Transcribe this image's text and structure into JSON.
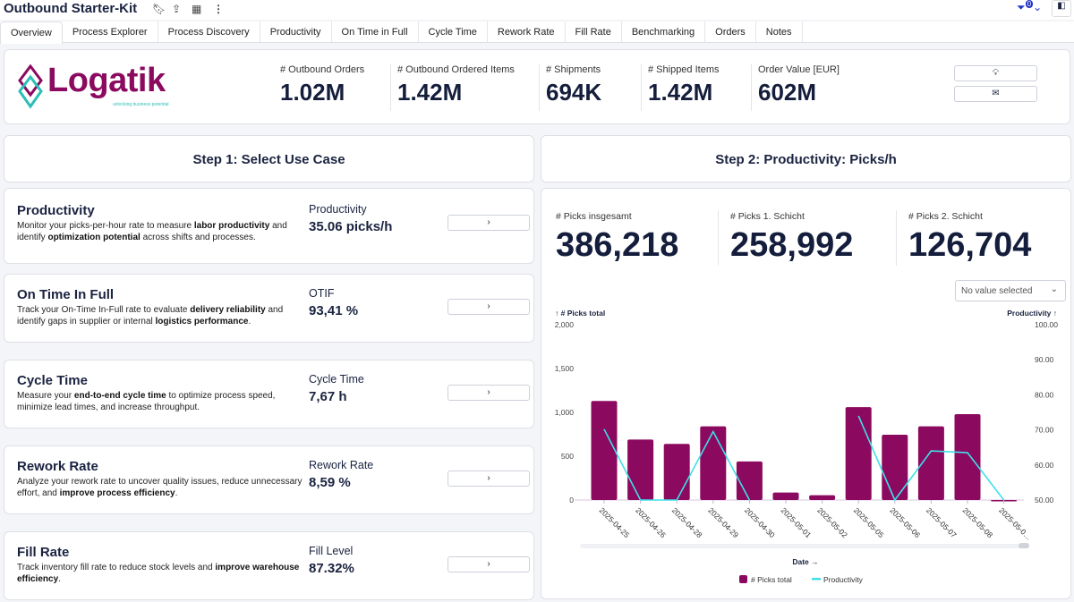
{
  "header": {
    "title": "Outbound Starter-Kit",
    "filter_count": "0"
  },
  "tabs": [
    "Overview",
    "Process Explorer",
    "Process Discovery",
    "Productivity",
    "On Time in Full",
    "Cycle Time",
    "Rework Rate",
    "Fill Rate",
    "Benchmarking",
    "Orders",
    "Notes"
  ],
  "logo": {
    "name": "Logatik",
    "tagline": "unlocking business potential"
  },
  "kpis": [
    {
      "label": "# Outbound Orders",
      "value": "1.02M"
    },
    {
      "label": "# Outbound Ordered Items",
      "value": "1.42M"
    },
    {
      "label": "# Shipments",
      "value": "694K"
    },
    {
      "label": "# Shipped Items",
      "value": "1.42M"
    },
    {
      "label": "Order Value [EUR]",
      "value": "602M"
    }
  ],
  "step1": "Step 1: Select Use Case",
  "step2": "Step 2: Productivity: Picks/h",
  "use_cases": [
    {
      "title": "Productivity",
      "desc": [
        {
          "t": "Monitor your picks-per-hour rate to measure "
        },
        {
          "t": "labor productivity",
          "b": 1
        },
        {
          "t": " and identify "
        },
        {
          "t": "optimization potential",
          "b": 1
        },
        {
          "t": " across shifts and processes."
        }
      ],
      "metric_label": "Productivity",
      "metric_value": "35.06 picks/h",
      "button": "›"
    },
    {
      "title": "On Time In Full",
      "desc": [
        {
          "t": "Track your On-Time In-Full rate to evaluate "
        },
        {
          "t": "delivery reliability",
          "b": 1
        },
        {
          "t": " and identify gaps in supplier or internal "
        },
        {
          "t": "logistics performance",
          "b": 1
        },
        {
          "t": "."
        }
      ],
      "metric_label": "OTIF",
      "metric_value": "93,41 %",
      "button": "›"
    },
    {
      "title": "Cycle Time",
      "desc": [
        {
          "t": "Measure your "
        },
        {
          "t": "end-to-end cycle time",
          "b": 1
        },
        {
          "t": " to optimize process speed, minimize lead times, and increase throughput."
        }
      ],
      "metric_label": "Cycle Time",
      "metric_value": "7,67 h",
      "button": "›"
    },
    {
      "title": "Rework Rate",
      "desc": [
        {
          "t": "Analyze your rework rate to uncover quality issues, reduce unnecessary effort, and "
        },
        {
          "t": "improve process efficiency",
          "b": 1
        },
        {
          "t": "."
        }
      ],
      "metric_label": "Rework Rate",
      "metric_value": "8,59 %",
      "button": "›"
    },
    {
      "title": "Fill Rate",
      "desc": [
        {
          "t": "Track inventory fill rate to reduce stock levels and "
        },
        {
          "t": "improve warehouse efficiency",
          "b": 1
        },
        {
          "t": "."
        }
      ],
      "metric_label": "Fill Level",
      "metric_value": "87.32%",
      "button": "›"
    }
  ],
  "picks": [
    {
      "label": "# Picks insgesamt",
      "value": "386,218"
    },
    {
      "label": "# Picks 1. Schicht",
      "value": "258,992"
    },
    {
      "label": "# Picks 2. Schicht",
      "value": "126,704"
    }
  ],
  "filter_select": {
    "value": "No value selected"
  },
  "chart_data": {
    "type": "bar",
    "xlabel": "Date →",
    "ylabel": "↑ # Picks total",
    "y2label": "Productivity ↑",
    "ylim": [
      0,
      2000
    ],
    "yticks": [
      "0",
      "500",
      "1,000",
      "1,500",
      "2,000"
    ],
    "y2lim": [
      50,
      100
    ],
    "y2ticks": [
      "50.00",
      "60.00",
      "70.00",
      "80.00",
      "90.00",
      "100.00"
    ],
    "categories": [
      "2025-04-25",
      "2025-04-26",
      "2025-04-28",
      "2025-04-29",
      "2025-04-30",
      "2025-05-01",
      "2025-05-02",
      "2025-05-05",
      "2025-05-06",
      "2025-05-07",
      "2025-05-08",
      "2025-05-0…"
    ],
    "series": [
      {
        "name": "# Picks total",
        "type": "bar",
        "color": "#8b0a5f",
        "values": [
          1130,
          690,
          640,
          840,
          440,
          85,
          55,
          1060,
          745,
          840,
          980,
          -8
        ]
      },
      {
        "name": "Productivity",
        "type": "line",
        "axis": "right",
        "color": "#3ee0e8",
        "values": [
          70.2,
          50,
          50,
          69.5,
          50,
          null,
          null,
          74,
          50,
          64,
          63.5,
          50
        ]
      }
    ],
    "legend": "bottom",
    "grid": false
  },
  "colors": {
    "brand": "#8b0a5f",
    "accent": "#2bbfb7",
    "line": "#3ee0e8"
  }
}
